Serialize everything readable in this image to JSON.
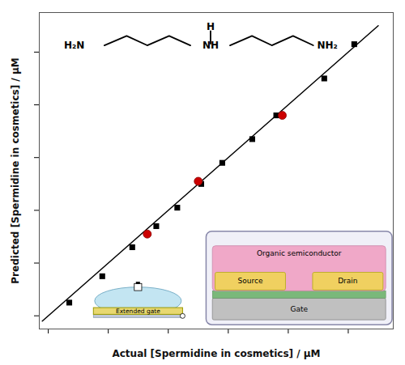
{
  "chart_data": {
    "type": "scatter",
    "xlabel": "Actual [Spermidine in cosmetics] / μM",
    "ylabel": "Predicted [Spermidine in cosmetics] / μM",
    "xlim": [
      -0.3,
      11.5
    ],
    "ylim": [
      -0.5,
      11.5
    ],
    "xticks": [
      0,
      2,
      4,
      6,
      8,
      10
    ],
    "yticks": [
      0,
      2,
      4,
      6,
      8,
      10
    ],
    "tick_labels": false,
    "grid": false,
    "series": [
      {
        "type": "line",
        "color": "#000000",
        "x": [
          -0.2,
          11.0
        ],
        "values": [
          -0.2,
          11.0
        ]
      },
      {
        "type": "scatter",
        "marker": "square",
        "color": "#000000",
        "x": [
          0.7,
          1.8,
          2.8,
          3.6,
          4.3,
          5.1,
          5.8,
          6.8,
          7.6,
          9.2,
          10.2
        ],
        "values": [
          0.5,
          1.5,
          2.6,
          3.4,
          4.1,
          5.0,
          5.8,
          6.7,
          7.6,
          9.0,
          10.3
        ]
      },
      {
        "type": "scatter",
        "marker": "circle",
        "color": "#cc0000",
        "x": [
          3.3,
          5.0,
          7.8
        ],
        "values": [
          3.1,
          5.1,
          7.6
        ]
      }
    ],
    "annotations": [
      "H₂N",
      "NH",
      "NH₂",
      "H",
      "Organic semiconductor",
      "Source",
      "Drain",
      "Gate",
      "Extended gate"
    ]
  }
}
